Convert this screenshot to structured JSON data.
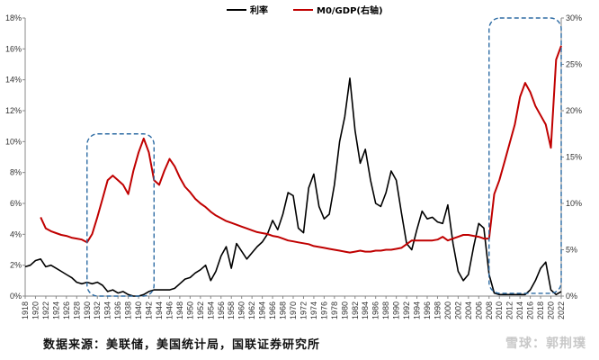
{
  "chart_data": {
    "type": "line",
    "title": "",
    "xlabel": "",
    "ylabel": "",
    "x_range": [
      1918,
      2022
    ],
    "x_ticks": [
      "1918",
      "1920",
      "1922",
      "1924",
      "1926",
      "1928",
      "1930",
      "1932",
      "1934",
      "1936",
      "1938",
      "1940",
      "1942",
      "1944",
      "1946",
      "1948",
      "1950",
      "1952",
      "1954",
      "1956",
      "1958",
      "1960",
      "1962",
      "1964",
      "1966",
      "1968",
      "1970",
      "1972",
      "1974",
      "1976",
      "1978",
      "1980",
      "1982",
      "1984",
      "1986",
      "1988",
      "1990",
      "1992",
      "1994",
      "1996",
      "1998",
      "2000",
      "2002",
      "2004",
      "2006",
      "2008",
      "2010",
      "2012",
      "2014",
      "2016",
      "2018",
      "2020",
      "2022"
    ],
    "y_left": {
      "range": [
        0,
        18
      ],
      "ticks": [
        "0%",
        "2%",
        "4%",
        "6%",
        "8%",
        "10%",
        "12%",
        "14%",
        "16%",
        "18%"
      ]
    },
    "y_right": {
      "range": [
        0,
        30
      ],
      "ticks": [
        "0%",
        "5%",
        "10%",
        "15%",
        "20%",
        "25%",
        "30%"
      ]
    },
    "legend": {
      "position": "top-center"
    },
    "grid": false,
    "series": [
      {
        "name": "利率",
        "color": "#000000",
        "axis": "left",
        "points": [
          [
            1918,
            1.9
          ],
          [
            1919,
            2.0
          ],
          [
            1920,
            2.3
          ],
          [
            1921,
            2.4
          ],
          [
            1922,
            1.9
          ],
          [
            1923,
            2.0
          ],
          [
            1924,
            1.8
          ],
          [
            1925,
            1.6
          ],
          [
            1926,
            1.4
          ],
          [
            1927,
            1.2
          ],
          [
            1928,
            0.9
          ],
          [
            1929,
            0.8
          ],
          [
            1930,
            0.9
          ],
          [
            1931,
            0.8
          ],
          [
            1932,
            0.9
          ],
          [
            1933,
            0.7
          ],
          [
            1934,
            0.3
          ],
          [
            1935,
            0.4
          ],
          [
            1936,
            0.2
          ],
          [
            1937,
            0.3
          ],
          [
            1938,
            0.1
          ],
          [
            1939,
            0.0
          ],
          [
            1940,
            0.0
          ],
          [
            1941,
            0.1
          ],
          [
            1942,
            0.3
          ],
          [
            1943,
            0.4
          ],
          [
            1944,
            0.4
          ],
          [
            1945,
            0.4
          ],
          [
            1946,
            0.4
          ],
          [
            1947,
            0.5
          ],
          [
            1948,
            0.8
          ],
          [
            1949,
            1.1
          ],
          [
            1950,
            1.2
          ],
          [
            1951,
            1.5
          ],
          [
            1952,
            1.7
          ],
          [
            1953,
            2.0
          ],
          [
            1954,
            1.0
          ],
          [
            1955,
            1.6
          ],
          [
            1956,
            2.6
          ],
          [
            1957,
            3.2
          ],
          [
            1958,
            1.8
          ],
          [
            1959,
            3.4
          ],
          [
            1960,
            2.9
          ],
          [
            1961,
            2.4
          ],
          [
            1962,
            2.8
          ],
          [
            1963,
            3.2
          ],
          [
            1964,
            3.5
          ],
          [
            1965,
            4.0
          ],
          [
            1966,
            4.9
          ],
          [
            1967,
            4.3
          ],
          [
            1968,
            5.3
          ],
          [
            1969,
            6.7
          ],
          [
            1970,
            6.5
          ],
          [
            1971,
            4.4
          ],
          [
            1972,
            4.1
          ],
          [
            1973,
            7.0
          ],
          [
            1974,
            7.9
          ],
          [
            1975,
            5.8
          ],
          [
            1976,
            5.0
          ],
          [
            1977,
            5.3
          ],
          [
            1978,
            7.2
          ],
          [
            1979,
            10.0
          ],
          [
            1980,
            11.6
          ],
          [
            1981,
            14.1
          ],
          [
            1982,
            10.7
          ],
          [
            1983,
            8.6
          ],
          [
            1984,
            9.5
          ],
          [
            1985,
            7.5
          ],
          [
            1986,
            6.0
          ],
          [
            1987,
            5.8
          ],
          [
            1988,
            6.7
          ],
          [
            1989,
            8.1
          ],
          [
            1990,
            7.5
          ],
          [
            1991,
            5.4
          ],
          [
            1992,
            3.4
          ],
          [
            1993,
            3.0
          ],
          [
            1994,
            4.3
          ],
          [
            1995,
            5.5
          ],
          [
            1996,
            5.0
          ],
          [
            1997,
            5.1
          ],
          [
            1998,
            4.8
          ],
          [
            1999,
            4.7
          ],
          [
            2000,
            5.9
          ],
          [
            2001,
            3.4
          ],
          [
            2002,
            1.6
          ],
          [
            2003,
            1.0
          ],
          [
            2004,
            1.4
          ],
          [
            2005,
            3.2
          ],
          [
            2006,
            4.7
          ],
          [
            2007,
            4.4
          ],
          [
            2008,
            1.4
          ],
          [
            2009,
            0.2
          ],
          [
            2010,
            0.1
          ],
          [
            2011,
            0.1
          ],
          [
            2012,
            0.1
          ],
          [
            2013,
            0.1
          ],
          [
            2014,
            0.1
          ],
          [
            2015,
            0.1
          ],
          [
            2016,
            0.4
          ],
          [
            2017,
            1.0
          ],
          [
            2018,
            1.8
          ],
          [
            2019,
            2.2
          ],
          [
            2020,
            0.4
          ],
          [
            2021,
            0.1
          ],
          [
            2022,
            0.3
          ]
        ]
      },
      {
        "name": "M0/GDP(右轴)",
        "color": "#c00000",
        "axis": "right",
        "points": [
          [
            1921,
            8.5
          ],
          [
            1922,
            7.3
          ],
          [
            1923,
            7.0
          ],
          [
            1924,
            6.8
          ],
          [
            1925,
            6.6
          ],
          [
            1926,
            6.5
          ],
          [
            1927,
            6.3
          ],
          [
            1928,
            6.2
          ],
          [
            1929,
            6.1
          ],
          [
            1930,
            5.8
          ],
          [
            1931,
            6.7
          ],
          [
            1932,
            8.5
          ],
          [
            1933,
            10.5
          ],
          [
            1934,
            12.5
          ],
          [
            1935,
            13.0
          ],
          [
            1936,
            12.5
          ],
          [
            1937,
            12.0
          ],
          [
            1938,
            11.0
          ],
          [
            1939,
            13.5
          ],
          [
            1940,
            15.5
          ],
          [
            1941,
            17.0
          ],
          [
            1942,
            15.5
          ],
          [
            1943,
            12.5
          ],
          [
            1944,
            12.0
          ],
          [
            1945,
            13.5
          ],
          [
            1946,
            14.8
          ],
          [
            1947,
            14.0
          ],
          [
            1948,
            12.8
          ],
          [
            1949,
            11.8
          ],
          [
            1950,
            11.2
          ],
          [
            1951,
            10.5
          ],
          [
            1952,
            10.0
          ],
          [
            1953,
            9.6
          ],
          [
            1954,
            9.1
          ],
          [
            1955,
            8.7
          ],
          [
            1956,
            8.4
          ],
          [
            1957,
            8.1
          ],
          [
            1958,
            7.9
          ],
          [
            1959,
            7.7
          ],
          [
            1960,
            7.5
          ],
          [
            1961,
            7.3
          ],
          [
            1962,
            7.1
          ],
          [
            1963,
            6.9
          ],
          [
            1964,
            6.8
          ],
          [
            1965,
            6.7
          ],
          [
            1966,
            6.5
          ],
          [
            1967,
            6.4
          ],
          [
            1968,
            6.2
          ],
          [
            1969,
            6.0
          ],
          [
            1970,
            5.9
          ],
          [
            1971,
            5.8
          ],
          [
            1972,
            5.7
          ],
          [
            1973,
            5.6
          ],
          [
            1974,
            5.4
          ],
          [
            1975,
            5.3
          ],
          [
            1976,
            5.2
          ],
          [
            1977,
            5.1
          ],
          [
            1978,
            5.0
          ],
          [
            1979,
            4.9
          ],
          [
            1980,
            4.8
          ],
          [
            1981,
            4.7
          ],
          [
            1982,
            4.8
          ],
          [
            1983,
            4.9
          ],
          [
            1984,
            4.8
          ],
          [
            1985,
            4.8
          ],
          [
            1986,
            4.9
          ],
          [
            1987,
            4.9
          ],
          [
            1988,
            5.0
          ],
          [
            1989,
            5.0
          ],
          [
            1990,
            5.1
          ],
          [
            1991,
            5.2
          ],
          [
            1992,
            5.6
          ],
          [
            1993,
            6.0
          ],
          [
            1994,
            6.0
          ],
          [
            1995,
            6.0
          ],
          [
            1996,
            6.0
          ],
          [
            1997,
            6.0
          ],
          [
            1998,
            6.1
          ],
          [
            1999,
            6.4
          ],
          [
            2000,
            6.0
          ],
          [
            2001,
            6.2
          ],
          [
            2002,
            6.4
          ],
          [
            2003,
            6.6
          ],
          [
            2004,
            6.6
          ],
          [
            2005,
            6.5
          ],
          [
            2006,
            6.4
          ],
          [
            2007,
            6.2
          ],
          [
            2008,
            6.2
          ],
          [
            2009,
            11.0
          ],
          [
            2010,
            12.5
          ],
          [
            2011,
            14.5
          ],
          [
            2012,
            16.5
          ],
          [
            2013,
            18.5
          ],
          [
            2014,
            21.5
          ],
          [
            2015,
            23.0
          ],
          [
            2016,
            22.0
          ],
          [
            2017,
            20.5
          ],
          [
            2018,
            19.5
          ],
          [
            2019,
            18.5
          ],
          [
            2020,
            16.0
          ],
          [
            2021,
            25.5
          ],
          [
            2022,
            27.0
          ]
        ]
      }
    ],
    "annotations": [
      {
        "type": "dashed-box",
        "color": "#2e6ca4",
        "x": [
          1930,
          1943
        ],
        "y_right": [
          0,
          17.5
        ]
      },
      {
        "type": "dashed-box",
        "color": "#2e6ca4",
        "x": [
          2008,
          2022
        ],
        "y_right": [
          0.3,
          30
        ]
      }
    ]
  },
  "source_note": "数据来源：美联储，美国统计局，国联证券研究所",
  "watermark": "雪球：郭荆璞"
}
